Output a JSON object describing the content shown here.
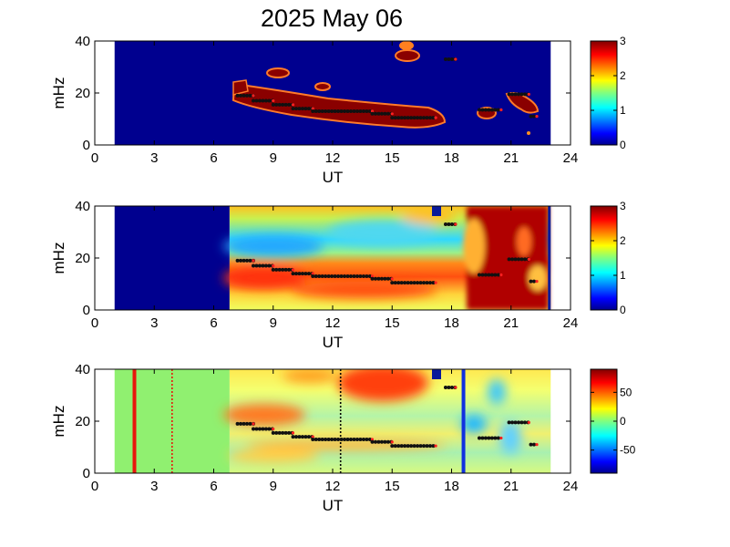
{
  "title": "2025 May 06",
  "chart_data": [
    {
      "type": "heatmap",
      "panel": "top",
      "xlabel": "UT",
      "ylabel": "mHz",
      "xlim": [
        0,
        24
      ],
      "ylim": [
        0,
        40
      ],
      "xticks": [
        "0",
        "3",
        "6",
        "9",
        "12",
        "15",
        "18",
        "21",
        "24"
      ],
      "yticks": [
        "0",
        "20",
        "40"
      ],
      "colorbar": {
        "min": 0,
        "max": 3,
        "ticks": [
          "0",
          "1",
          "2",
          "3"
        ],
        "colormap": "jet"
      },
      "data_coverage_ut": [
        1.0,
        23.0
      ],
      "background_level": 0,
      "features": [
        {
          "kind": "band",
          "description_values": {
            "ut_start": 7.2,
            "ut_end": 17.6,
            "freq_start_mhz": 20,
            "freq_end_mhz": 10,
            "level": 3
          }
        },
        {
          "kind": "blob",
          "description_values": {
            "ut": 8.8,
            "freq_mhz": 27,
            "level": 3
          }
        },
        {
          "kind": "blob",
          "description_values": {
            "ut": 11.4,
            "freq_mhz": 22,
            "level": 3
          }
        },
        {
          "kind": "blob",
          "description_values": {
            "ut": 16.8,
            "freq_mhz": 35,
            "level": 3
          }
        },
        {
          "kind": "blob",
          "description_values": {
            "ut": 20.6,
            "freq_mhz": 14,
            "level": 3
          }
        },
        {
          "kind": "blob",
          "description_values": {
            "ut": 22.0,
            "freq_mhz": 18,
            "level": 3
          }
        }
      ]
    },
    {
      "type": "heatmap",
      "panel": "middle",
      "xlabel": "UT",
      "ylabel": "mHz",
      "xlim": [
        0,
        24
      ],
      "ylim": [
        0,
        40
      ],
      "xticks": [
        "0",
        "3",
        "6",
        "9",
        "12",
        "15",
        "18",
        "21",
        "24"
      ],
      "yticks": [
        "0",
        "20",
        "40"
      ],
      "colorbar": {
        "min": 0,
        "max": 3,
        "ticks": [
          "0",
          "1",
          "2",
          "3"
        ],
        "colormap": "jet"
      },
      "data_coverage_ut": [
        1.0,
        23.0
      ],
      "no_data_until_ut": 6.8
    },
    {
      "type": "heatmap",
      "panel": "bottom",
      "xlabel": "UT",
      "ylabel": "mHz",
      "xlim": [
        0,
        24
      ],
      "ylim": [
        0,
        40
      ],
      "xticks": [
        "0",
        "3",
        "6",
        "9",
        "12",
        "15",
        "18",
        "21",
        "24"
      ],
      "yticks": [
        "0",
        "20",
        "40"
      ],
      "colorbar": {
        "min": -90,
        "max": 90,
        "ticks": [
          "50",
          "0",
          "-50"
        ],
        "colormap": "jet"
      },
      "data_coverage_ut": [
        1.0,
        23.0
      ],
      "no_data_until_ut": 6.8,
      "vertical_markers": [
        {
          "ut": 2.0,
          "style": "solid",
          "color": "#e8170c"
        },
        {
          "ut": 3.9,
          "style": "dotted",
          "color": "#e8170c"
        },
        {
          "ut": 12.4,
          "style": "dotted",
          "color": "#000000"
        },
        {
          "ut": 18.6,
          "style": "solid",
          "color": "#1030e0"
        }
      ]
    }
  ],
  "ridge_points": {
    "main_segments": [
      {
        "ut_start": 7.2,
        "ut_end": 8.0,
        "freq_mhz": 19
      },
      {
        "ut_start": 8.0,
        "ut_end": 9.0,
        "freq_mhz": 17
      },
      {
        "ut_start": 9.0,
        "ut_end": 10.0,
        "freq_mhz": 15.5
      },
      {
        "ut_start": 10.0,
        "ut_end": 11.0,
        "freq_mhz": 14
      },
      {
        "ut_start": 11.0,
        "ut_end": 14.0,
        "freq_mhz": 13
      },
      {
        "ut_start": 14.0,
        "ut_end": 15.0,
        "freq_mhz": 12
      },
      {
        "ut_start": 15.0,
        "ut_end": 17.2,
        "freq_mhz": 10.5
      }
    ],
    "extra_segments": [
      {
        "ut_start": 17.7,
        "ut_end": 18.2,
        "freq_mhz": 33
      },
      {
        "ut_start": 19.4,
        "ut_end": 20.5,
        "freq_mhz": 13.5
      },
      {
        "ut_start": 20.9,
        "ut_end": 21.9,
        "freq_mhz": 19.5
      },
      {
        "ut_start": 22.0,
        "ut_end": 22.3,
        "freq_mhz": 11
      }
    ]
  }
}
